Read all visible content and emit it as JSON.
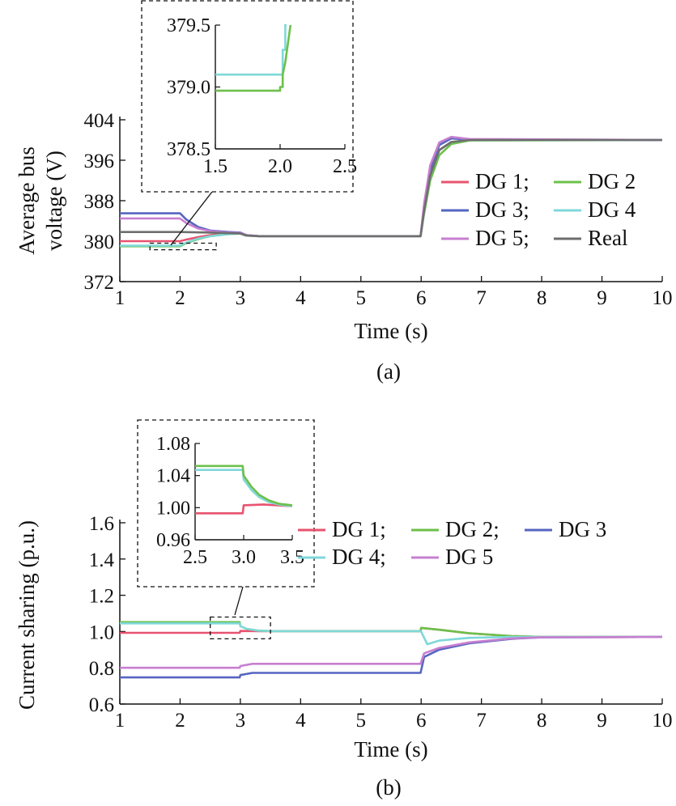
{
  "figure": {
    "captions": [
      "(a)",
      "(b)"
    ]
  },
  "chart_data": [
    {
      "type": "line",
      "panel": "(a)",
      "xlabel": "Time (s)",
      "ylabel_lines": [
        "Average bus",
        "voltage (V)"
      ],
      "xlim": [
        1,
        10
      ],
      "ylim": [
        372,
        404
      ],
      "xticks": [
        "1",
        "2",
        "3",
        "4",
        "5",
        "6",
        "7",
        "8",
        "9",
        "10"
      ],
      "yticks": [
        "372",
        "380",
        "388",
        "396",
        "404"
      ],
      "legend": {
        "placement": "right",
        "labels": [
          "DG 1;",
          "DG 2",
          "DG 3;",
          "DG 4",
          "DG 5;",
          "Real"
        ]
      },
      "series": [
        {
          "name": "DG 1",
          "color": "#e8536f",
          "values": [
            [
              1,
              380.0
            ],
            [
              2.0,
              380.0
            ],
            [
              2.1,
              380.3
            ],
            [
              2.3,
              380.8
            ],
            [
              2.5,
              381.2
            ],
            [
              2.8,
              381.5
            ],
            [
              3.0,
              381.6
            ],
            [
              3.1,
              381.2
            ],
            [
              3.3,
              381.0
            ],
            [
              5.99,
              381.0
            ],
            [
              6.05,
              386
            ],
            [
              6.15,
              393
            ],
            [
              6.3,
              398
            ],
            [
              6.5,
              399.6
            ],
            [
              6.8,
              400.0
            ],
            [
              10,
              400.0
            ]
          ]
        },
        {
          "name": "DG 2",
          "color": "#6cc04a",
          "values": [
            [
              1,
              379.0
            ],
            [
              2.0,
              379.0
            ],
            [
              2.1,
              379.6
            ],
            [
              2.3,
              380.4
            ],
            [
              2.5,
              381.0
            ],
            [
              2.8,
              381.4
            ],
            [
              3.0,
              381.5
            ],
            [
              3.1,
              381.1
            ],
            [
              3.3,
              381.0
            ],
            [
              5.99,
              381.0
            ],
            [
              6.05,
              385.5
            ],
            [
              6.15,
              392
            ],
            [
              6.3,
              397
            ],
            [
              6.5,
              399.2
            ],
            [
              6.8,
              399.9
            ],
            [
              10,
              400.0
            ]
          ]
        },
        {
          "name": "DG 3",
          "color": "#5665c0",
          "values": [
            [
              1,
              385.5
            ],
            [
              2.0,
              385.5
            ],
            [
              2.1,
              384.3
            ],
            [
              2.3,
              382.8
            ],
            [
              2.5,
              382.1
            ],
            [
              2.8,
              381.8
            ],
            [
              3.0,
              381.7
            ],
            [
              3.1,
              381.2
            ],
            [
              3.3,
              381.0
            ],
            [
              5.99,
              381.0
            ],
            [
              6.05,
              387
            ],
            [
              6.15,
              394
            ],
            [
              6.3,
              399
            ],
            [
              6.5,
              400.3
            ],
            [
              6.8,
              400.1
            ],
            [
              10,
              400.0
            ]
          ]
        },
        {
          "name": "DG 4",
          "color": "#7fd8d8",
          "values": [
            [
              1,
              379.1
            ],
            [
              2.0,
              379.1
            ],
            [
              2.1,
              379.7
            ],
            [
              2.3,
              380.5
            ],
            [
              2.5,
              381.0
            ],
            [
              2.8,
              381.4
            ],
            [
              3.0,
              381.5
            ],
            [
              3.1,
              381.1
            ],
            [
              3.3,
              381.0
            ],
            [
              5.99,
              381.0
            ],
            [
              6.05,
              386
            ],
            [
              6.15,
              393
            ],
            [
              6.3,
              398
            ],
            [
              6.5,
              399.6
            ],
            [
              6.8,
              400.0
            ],
            [
              10,
              400.0
            ]
          ]
        },
        {
          "name": "DG 5",
          "color": "#c77fd0",
          "values": [
            [
              1,
              384.5
            ],
            [
              2.0,
              384.5
            ],
            [
              2.1,
              383.6
            ],
            [
              2.3,
              382.5
            ],
            [
              2.5,
              382.0
            ],
            [
              2.8,
              381.7
            ],
            [
              3.0,
              381.6
            ],
            [
              3.1,
              381.2
            ],
            [
              3.3,
              381.0
            ],
            [
              5.99,
              381.0
            ],
            [
              6.05,
              387.5
            ],
            [
              6.15,
              395
            ],
            [
              6.3,
              399.5
            ],
            [
              6.5,
              400.6
            ],
            [
              6.8,
              400.2
            ],
            [
              10,
              400.0
            ]
          ]
        },
        {
          "name": "Real",
          "color": "#6e6e6e",
          "values": [
            [
              1,
              381.8
            ],
            [
              2.0,
              381.8
            ],
            [
              2.5,
              381.7
            ],
            [
              3.0,
              381.5
            ],
            [
              3.1,
              381.1
            ],
            [
              3.3,
              381.0
            ],
            [
              5.99,
              381.0
            ],
            [
              6.05,
              386
            ],
            [
              6.15,
              393
            ],
            [
              6.3,
              398
            ],
            [
              6.5,
              399.6
            ],
            [
              6.8,
              400.0
            ],
            [
              10,
              400.0
            ]
          ]
        }
      ],
      "zoom_box": {
        "xlim": [
          1.5,
          2.6
        ],
        "ylim": [
          378.3,
          379.6
        ]
      },
      "inset": {
        "xlim": [
          1.5,
          2.5
        ],
        "ylim": [
          378.5,
          379.5
        ],
        "xticks": [
          "1.5",
          "2.0",
          "2.5"
        ],
        "yticks": [
          "378.5",
          "379.0",
          "379.5"
        ],
        "series": [
          {
            "name": "DG 4",
            "color": "#7fd8d8",
            "values": [
              [
                1.5,
                379.1
              ],
              [
                2.02,
                379.1
              ],
              [
                2.02,
                379.3
              ],
              [
                2.04,
                379.3
              ],
              [
                2.04,
                379.5
              ],
              [
                2.05,
                379.5
              ]
            ]
          },
          {
            "name": "DG 2",
            "color": "#6cc04a",
            "values": [
              [
                1.5,
                378.97
              ],
              [
                2.0,
                378.97
              ],
              [
                2.0,
                379.0
              ],
              [
                2.02,
                379.0
              ],
              [
                2.02,
                379.1
              ],
              [
                2.04,
                379.2
              ],
              [
                2.06,
                379.35
              ],
              [
                2.08,
                379.5
              ]
            ]
          }
        ]
      }
    },
    {
      "type": "line",
      "panel": "(b)",
      "xlabel": "Time (s)",
      "ylabel": "Current sharing (p.u.)",
      "xlim": [
        1,
        10
      ],
      "ylim": [
        0.6,
        1.6
      ],
      "xticks": [
        "1",
        "2",
        "3",
        "4",
        "5",
        "6",
        "7",
        "8",
        "9",
        "10"
      ],
      "yticks": [
        "0.6",
        "0.8",
        "1.0",
        "1.2",
        "1.4",
        "1.6"
      ],
      "legend": {
        "placement": "right",
        "labels": [
          "DG 1;",
          "DG 2;",
          "DG 3",
          "DG 4;",
          "DG 5"
        ]
      },
      "series": [
        {
          "name": "DG 1",
          "color": "#e8536f",
          "values": [
            [
              1,
              0.993
            ],
            [
              2.99,
              0.993
            ],
            [
              3.0,
              1.003
            ],
            [
              3.3,
              1.002
            ],
            [
              5.99,
              1.002
            ],
            [
              6.0,
              1.02
            ],
            [
              6.3,
              1.01
            ],
            [
              6.8,
              0.99
            ],
            [
              7.5,
              0.975
            ],
            [
              8.0,
              0.97
            ],
            [
              10,
              0.97
            ]
          ]
        },
        {
          "name": "DG 2",
          "color": "#6cc04a",
          "values": [
            [
              1,
              1.052
            ],
            [
              2.99,
              1.052
            ],
            [
              3.0,
              1.03
            ],
            [
              3.1,
              1.015
            ],
            [
              3.3,
              1.005
            ],
            [
              3.6,
              1.002
            ],
            [
              5.99,
              1.002
            ],
            [
              6.0,
              1.02
            ],
            [
              6.3,
              1.01
            ],
            [
              6.8,
              0.99
            ],
            [
              7.5,
              0.975
            ],
            [
              8.0,
              0.97
            ],
            [
              10,
              0.97
            ]
          ]
        },
        {
          "name": "DG 3",
          "color": "#5665c0",
          "values": [
            [
              1,
              0.747
            ],
            [
              2.99,
              0.747
            ],
            [
              3.0,
              0.76
            ],
            [
              3.2,
              0.772
            ],
            [
              5.99,
              0.772
            ],
            [
              6.05,
              0.86
            ],
            [
              6.3,
              0.9
            ],
            [
              6.8,
              0.935
            ],
            [
              7.5,
              0.96
            ],
            [
              8.0,
              0.968
            ],
            [
              10,
              0.97
            ]
          ]
        },
        {
          "name": "DG 4",
          "color": "#7fd8d8",
          "values": [
            [
              1,
              1.045
            ],
            [
              2.99,
              1.045
            ],
            [
              3.0,
              1.03
            ],
            [
              3.1,
              1.015
            ],
            [
              3.3,
              1.005
            ],
            [
              3.6,
              1.002
            ],
            [
              5.99,
              1.002
            ],
            [
              6.0,
              1.0
            ],
            [
              6.1,
              0.93
            ],
            [
              6.3,
              0.95
            ],
            [
              6.8,
              0.965
            ],
            [
              7.5,
              0.97
            ],
            [
              10,
              0.97
            ]
          ]
        },
        {
          "name": "DG 5",
          "color": "#c77fd0",
          "values": [
            [
              1,
              0.8
            ],
            [
              2.99,
              0.8
            ],
            [
              3.0,
              0.81
            ],
            [
              3.2,
              0.822
            ],
            [
              5.99,
              0.822
            ],
            [
              6.05,
              0.88
            ],
            [
              6.3,
              0.91
            ],
            [
              6.8,
              0.94
            ],
            [
              7.5,
              0.962
            ],
            [
              8.0,
              0.968
            ],
            [
              10,
              0.97
            ]
          ]
        }
      ],
      "zoom_box": {
        "xlim": [
          2.5,
          3.5
        ],
        "ylim": [
          0.96,
          1.08
        ]
      },
      "inset": {
        "xlim": [
          2.5,
          3.5
        ],
        "ylim": [
          0.96,
          1.08
        ],
        "xticks": [
          "2.5",
          "3.0",
          "3.5"
        ],
        "yticks": [
          "0.96",
          "1.00",
          "1.04",
          "1.08"
        ],
        "series": [
          {
            "name": "DG 1",
            "color": "#e8536f",
            "values": [
              [
                2.5,
                0.993
              ],
              [
                2.99,
                0.993
              ],
              [
                3.0,
                1.003
              ],
              [
                3.2,
                1.004
              ],
              [
                3.35,
                1.003
              ],
              [
                3.5,
                1.002
              ]
            ]
          },
          {
            "name": "DG 4",
            "color": "#7fd8d8",
            "values": [
              [
                2.5,
                1.047
              ],
              [
                2.99,
                1.047
              ],
              [
                3.0,
                1.035
              ],
              [
                3.08,
                1.022
              ],
              [
                3.16,
                1.013
              ],
              [
                3.26,
                1.007
              ],
              [
                3.36,
                1.004
              ],
              [
                3.5,
                1.002
              ]
            ]
          },
          {
            "name": "DG 2",
            "color": "#6cc04a",
            "values": [
              [
                2.5,
                1.052
              ],
              [
                2.99,
                1.052
              ],
              [
                3.0,
                1.04
              ],
              [
                3.08,
                1.026
              ],
              [
                3.16,
                1.016
              ],
              [
                3.26,
                1.009
              ],
              [
                3.36,
                1.005
              ],
              [
                3.5,
                1.003
              ]
            ]
          }
        ]
      }
    }
  ]
}
